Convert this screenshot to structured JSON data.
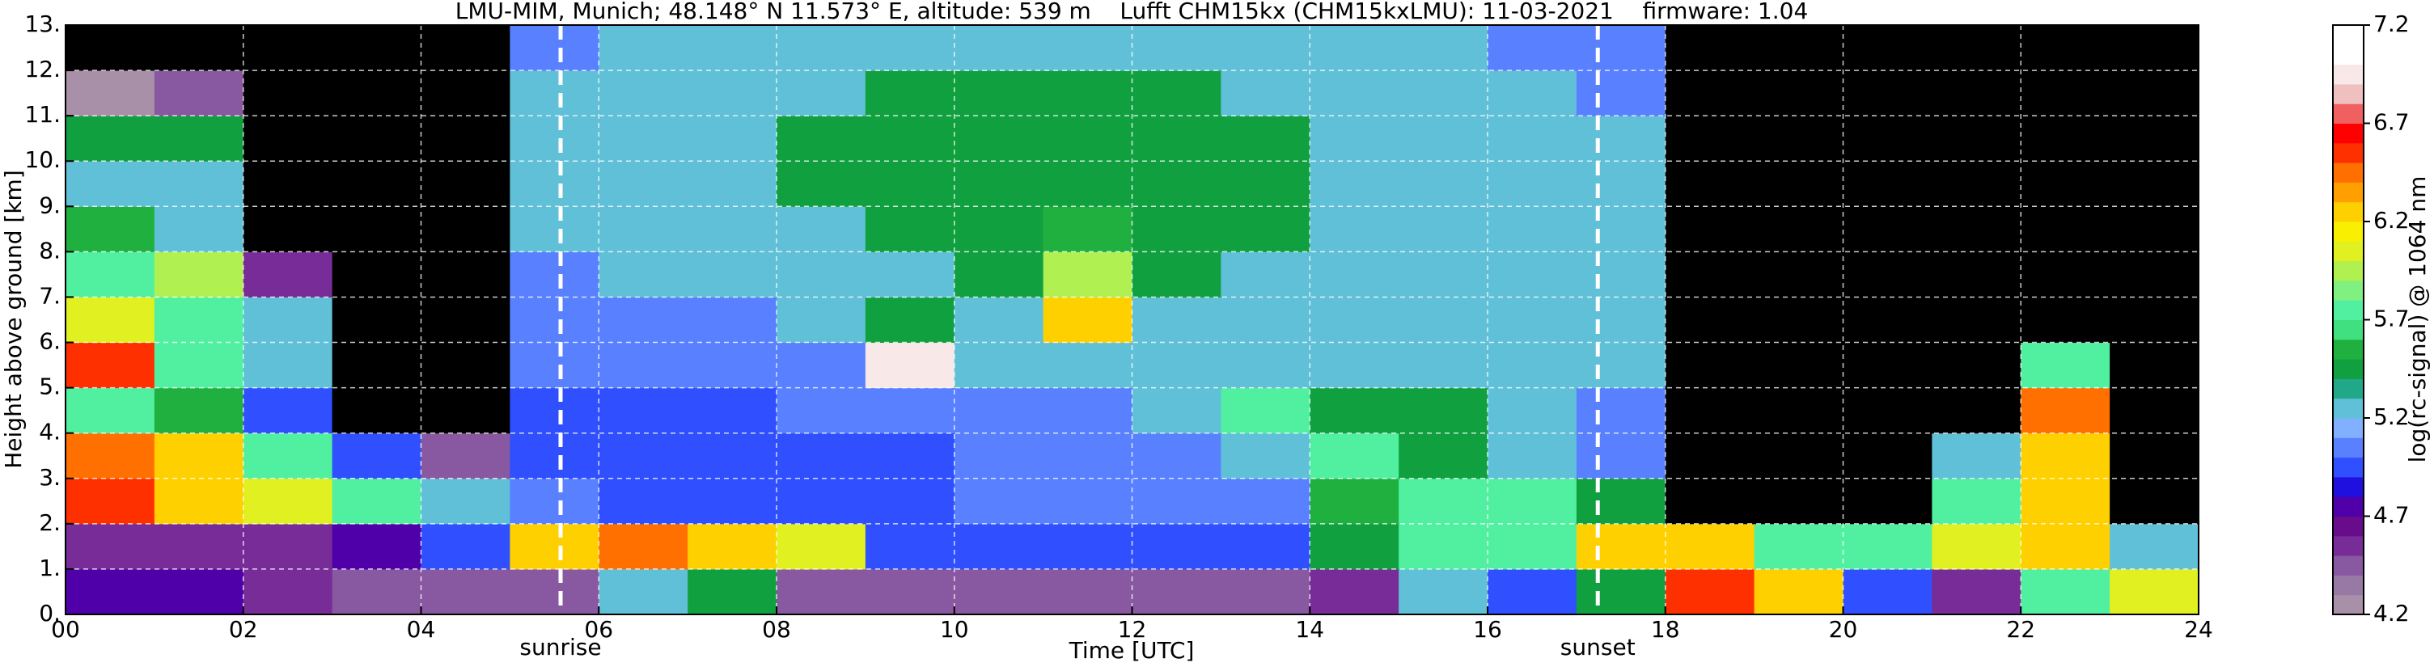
{
  "chart_data": {
    "type": "heatmap",
    "title": "LMU-MIM, Munich; 48.148° N 11.573° E, altitude: 539 m    Lufft CHM15kx (CHM15kxLMU): 11-03-2021    firmware: 1.04",
    "x_label": "Time [UTC]",
    "y_label": "Height above ground [km]",
    "xlim": [
      0,
      24
    ],
    "ylim": [
      0,
      13
    ],
    "xticks": [
      {
        "value": 0,
        "label": "00"
      },
      {
        "value": 2,
        "label": "02"
      },
      {
        "value": 4,
        "label": "04"
      },
      {
        "value": 6,
        "label": "06"
      },
      {
        "value": 8,
        "label": "08"
      },
      {
        "value": 10,
        "label": "10"
      },
      {
        "value": 12,
        "label": "12"
      },
      {
        "value": 14,
        "label": "14"
      },
      {
        "value": 16,
        "label": "16"
      },
      {
        "value": 18,
        "label": "18"
      },
      {
        "value": 20,
        "label": "20"
      },
      {
        "value": 22,
        "label": "22"
      },
      {
        "value": 24,
        "label": "24"
      }
    ],
    "yticks": [
      {
        "value": 0,
        "label": "0."
      },
      {
        "value": 1,
        "label": "1."
      },
      {
        "value": 2,
        "label": "2."
      },
      {
        "value": 3,
        "label": "3."
      },
      {
        "value": 4,
        "label": "4."
      },
      {
        "value": 5,
        "label": "5."
      },
      {
        "value": 6,
        "label": "6."
      },
      {
        "value": 7,
        "label": "7."
      },
      {
        "value": 8,
        "label": "8."
      },
      {
        "value": 9,
        "label": "9."
      },
      {
        "value": 10,
        "label": "10."
      },
      {
        "value": 11,
        "label": "11."
      },
      {
        "value": 12,
        "label": "12."
      },
      {
        "value": 13,
        "label": "13."
      }
    ],
    "grid": true,
    "x_edges": [
      0,
      1,
      2,
      3,
      4,
      5,
      6,
      7,
      8,
      9,
      10,
      11,
      12,
      13,
      14,
      15,
      16,
      17,
      18,
      19,
      20,
      21,
      22,
      23,
      24
    ],
    "y_edges": [
      0,
      1,
      2,
      3,
      4,
      5,
      6,
      7,
      8,
      9,
      10,
      11,
      12,
      13
    ],
    "z": [
      [
        4.8,
        4.8,
        4.6,
        4.5,
        4.5,
        4.4,
        5.2,
        5.5,
        4.5,
        4.5,
        4.5,
        4.5,
        4.5,
        4.5,
        4.6,
        5.3,
        5.0,
        5.5,
        6.5,
        6.2,
        5.0,
        4.6,
        5.8,
        6.0
      ],
      [
        4.6,
        4.6,
        4.6,
        4.7,
        5.0,
        6.3,
        6.4,
        6.3,
        6.0,
        5.0,
        4.9,
        5.0,
        5.0,
        5.0,
        5.4,
        5.7,
        5.8,
        6.3,
        6.2,
        5.8,
        5.7,
        6.0,
        6.3,
        5.3
      ],
      [
        6.5,
        6.3,
        6.0,
        5.8,
        5.3,
        5.1,
        5.0,
        5.0,
        5.0,
        5.0,
        5.1,
        5.1,
        5.1,
        5.1,
        5.6,
        5.8,
        5.7,
        5.5,
        4.0,
        4.0,
        4.0,
        5.8,
        6.3,
        4.0
      ],
      [
        6.4,
        6.2,
        5.8,
        5.0,
        4.5,
        5.0,
        5.0,
        5.0,
        5.0,
        5.0,
        5.1,
        5.1,
        5.1,
        5.2,
        5.8,
        5.5,
        5.2,
        5.1,
        4.0,
        4.0,
        4.0,
        5.3,
        6.3,
        4.0
      ],
      [
        5.8,
        5.6,
        5.0,
        4.0,
        4.0,
        5.0,
        5.0,
        5.0,
        5.1,
        5.1,
        5.1,
        5.1,
        5.2,
        5.8,
        5.5,
        5.4,
        5.2,
        5.1,
        4.0,
        4.0,
        4.0,
        4.0,
        6.4,
        4.0
      ],
      [
        6.6,
        5.8,
        5.3,
        4.0,
        4.0,
        5.1,
        5.1,
        5.1,
        5.1,
        6.9,
        5.2,
        5.2,
        5.2,
        5.2,
        5.3,
        5.2,
        5.2,
        5.2,
        4.0,
        4.0,
        4.0,
        4.0,
        5.8,
        4.0
      ],
      [
        6.0,
        5.8,
        5.2,
        4.0,
        4.0,
        5.1,
        5.1,
        5.1,
        5.2,
        5.4,
        5.3,
        6.3,
        5.3,
        5.3,
        5.3,
        5.2,
        5.2,
        5.2,
        4.0,
        4.0,
        4.0,
        4.0,
        4.0,
        4.0
      ],
      [
        5.7,
        5.9,
        4.6,
        4.0,
        4.0,
        5.1,
        5.2,
        5.2,
        5.3,
        5.3,
        5.4,
        5.9,
        5.4,
        5.3,
        5.3,
        5.2,
        5.2,
        5.2,
        4.0,
        4.0,
        4.0,
        4.0,
        4.0,
        4.0
      ],
      [
        5.6,
        5.3,
        4.0,
        4.0,
        4.0,
        5.2,
        5.2,
        5.3,
        5.3,
        5.4,
        5.5,
        5.6,
        5.5,
        5.4,
        5.3,
        5.3,
        5.2,
        5.2,
        4.0,
        4.0,
        4.0,
        4.0,
        4.0,
        4.0
      ],
      [
        5.3,
        5.2,
        4.0,
        4.0,
        4.0,
        5.2,
        5.3,
        5.3,
        5.4,
        5.5,
        5.5,
        5.5,
        5.5,
        5.4,
        5.3,
        5.3,
        5.2,
        5.2,
        4.0,
        4.0,
        4.0,
        4.0,
        4.0,
        4.0
      ],
      [
        5.4,
        5.4,
        4.0,
        4.0,
        4.0,
        5.2,
        5.3,
        5.3,
        5.4,
        5.5,
        5.5,
        5.5,
        5.5,
        5.4,
        5.3,
        5.3,
        5.2,
        5.2,
        4.0,
        4.0,
        4.0,
        4.0,
        4.0,
        4.0
      ],
      [
        4.3,
        4.5,
        4.0,
        4.0,
        4.0,
        5.2,
        5.2,
        5.3,
        5.3,
        5.4,
        5.4,
        5.4,
        5.4,
        5.3,
        5.3,
        5.2,
        5.2,
        5.1,
        4.0,
        4.0,
        4.0,
        4.0,
        4.0,
        4.0
      ],
      [
        4.0,
        4.0,
        4.0,
        4.0,
        4.0,
        5.1,
        5.2,
        5.2,
        5.3,
        5.3,
        5.3,
        5.3,
        5.3,
        5.3,
        5.2,
        5.2,
        5.1,
        5.1,
        4.0,
        4.0,
        4.0,
        4.0,
        4.0,
        4.0
      ]
    ],
    "under_color": "#000000",
    "colorbar": {
      "label": "log(rc-signal) @ 1064 nm",
      "lim": [
        4.2,
        7.2
      ],
      "ticks": [
        4.2,
        4.7,
        5.2,
        5.7,
        6.2,
        6.7,
        7.2
      ],
      "colors": [
        "#a890a8",
        "#9878a4",
        "#8858a0",
        "#782c98",
        "#680c8c",
        "#5000a8",
        "#2010e0",
        "#3050ff",
        "#5880ff",
        "#80b0ff",
        "#60c0d8",
        "#20a888",
        "#10a040",
        "#20b040",
        "#40e080",
        "#50f0a0",
        "#80f080",
        "#b0f050",
        "#e0f020",
        "#f8f000",
        "#ffd000",
        "#ffa000",
        "#ff7000",
        "#ff3000",
        "#ff0000",
        "#f06060",
        "#f0c0c0",
        "#f8e8e8",
        "#ffffff",
        "#ffffff"
      ]
    },
    "annotations": [
      {
        "label": "sunrise",
        "x": 5.57
      },
      {
        "label": "sunset",
        "x": 17.24
      }
    ]
  }
}
